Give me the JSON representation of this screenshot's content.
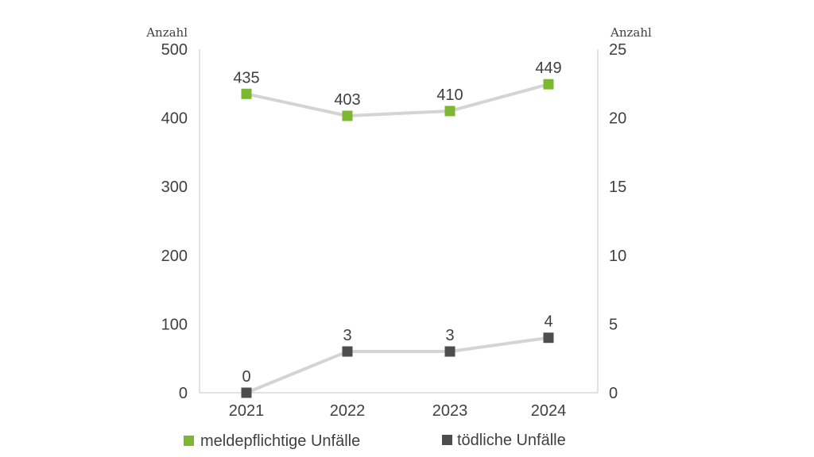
{
  "chart_data": {
    "type": "line",
    "categories": [
      "2021",
      "2022",
      "2023",
      "2024"
    ],
    "y_left": {
      "label": "Anzahl",
      "range": [
        0,
        500
      ],
      "ticks": [
        "0",
        "100",
        "200",
        "300",
        "400",
        "500"
      ]
    },
    "y_right": {
      "label": "Anzahl",
      "range": [
        0,
        25
      ],
      "ticks": [
        "0",
        "5",
        "10",
        "15",
        "20",
        "25"
      ]
    },
    "grid": false,
    "legend_position": "bottom",
    "series": [
      {
        "name": "meldepflichtige Unfälle",
        "axis": "left",
        "values": [
          435,
          403,
          410,
          449
        ],
        "labels": [
          "435",
          "403",
          "410",
          "449"
        ],
        "marker_color": "#7cb82f",
        "line_color": "#d4d4d4"
      },
      {
        "name": "tödliche Unfälle",
        "axis": "right",
        "values": [
          0,
          3,
          3,
          4
        ],
        "labels": [
          "0",
          "3",
          "3",
          "4"
        ],
        "marker_color": "#4d4d4d",
        "line_color": "#d4d4d4"
      }
    ]
  }
}
